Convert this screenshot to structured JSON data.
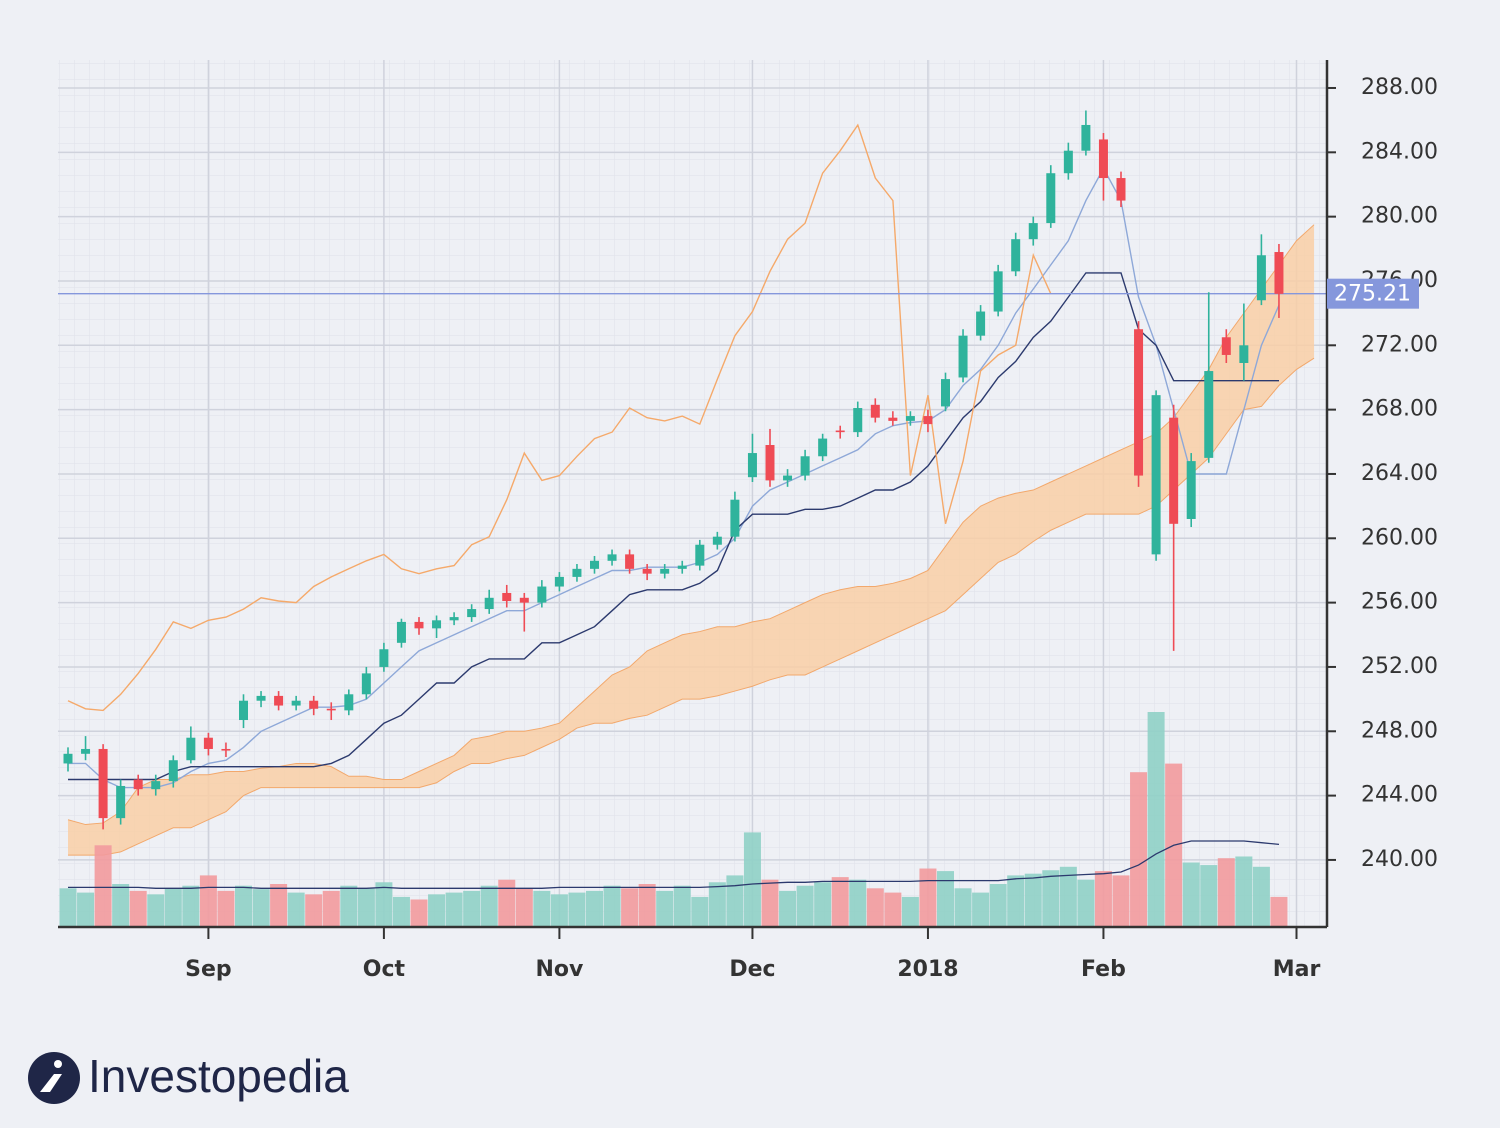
{
  "chart_data": {
    "type": "candlestick",
    "categories": [
      null,
      null,
      null,
      null,
      null,
      null,
      null,
      null,
      "Sep",
      null,
      null,
      null,
      null,
      null,
      null,
      null,
      null,
      null,
      "Oct",
      null,
      null,
      null,
      null,
      null,
      null,
      null,
      null,
      null,
      "Nov",
      null,
      null,
      null,
      null,
      null,
      null,
      null,
      null,
      null,
      null,
      "Dec",
      null,
      null,
      null,
      null,
      null,
      null,
      null,
      null,
      null,
      "2018",
      null,
      null,
      null,
      null,
      null,
      null,
      null,
      null,
      null,
      "Feb",
      null,
      null,
      null,
      null,
      null,
      null,
      null,
      null,
      null,
      null,
      "Mar",
      null
    ],
    "open": [
      246.0,
      246.6,
      246.9,
      242.6,
      245.0,
      244.4,
      244.9,
      246.2,
      247.6,
      246.9,
      248.7,
      249.9,
      250.2,
      249.6,
      249.9,
      249.4,
      249.3,
      250.3,
      252.0,
      253.5,
      254.8,
      254.4,
      254.9,
      255.1,
      255.6,
      256.6,
      256.3,
      256.0,
      257.0,
      257.6,
      258.1,
      258.6,
      259.0,
      258.1,
      257.8,
      258.1,
      258.3,
      259.6,
      260.1,
      263.8,
      265.8,
      263.6,
      263.9,
      265.1,
      266.7,
      266.6,
      268.3,
      267.5,
      267.3,
      267.6,
      268.2,
      270.0,
      272.6,
      274.1,
      276.6,
      278.6,
      279.6,
      282.7,
      284.1,
      284.8,
      282.4,
      273.0,
      259.0,
      267.5,
      261.2,
      265.0,
      272.5,
      270.9,
      274.8,
      277.8,
      null,
      null
    ],
    "high": [
      247.0,
      247.7,
      247.2,
      245.0,
      245.3,
      245.3,
      246.5,
      248.3,
      247.9,
      247.3,
      250.3,
      250.5,
      250.5,
      250.2,
      250.2,
      249.8,
      250.6,
      252.0,
      253.5,
      255.0,
      255.1,
      255.2,
      255.4,
      255.9,
      256.8,
      257.1,
      256.6,
      257.4,
      257.9,
      258.4,
      258.9,
      259.3,
      259.3,
      258.4,
      258.4,
      258.6,
      259.9,
      260.4,
      262.9,
      266.5,
      266.8,
      264.3,
      265.5,
      266.5,
      267.0,
      268.5,
      268.7,
      267.9,
      267.9,
      268.0,
      270.3,
      273.0,
      274.5,
      277.0,
      279.0,
      280.0,
      283.2,
      284.6,
      286.6,
      285.2,
      282.8,
      273.5,
      269.2,
      268.3,
      265.3,
      275.3,
      273.0,
      274.6,
      278.9,
      278.3,
      null,
      null
    ],
    "low": [
      245.5,
      246.2,
      241.9,
      242.2,
      244.0,
      244.0,
      244.5,
      246.0,
      246.5,
      246.4,
      248.2,
      249.5,
      249.3,
      249.3,
      249.0,
      248.7,
      249.0,
      250.0,
      251.7,
      253.2,
      254.0,
      253.8,
      254.6,
      254.8,
      255.3,
      255.7,
      254.2,
      255.7,
      256.7,
      257.3,
      257.8,
      258.3,
      257.8,
      257.4,
      257.5,
      257.8,
      258.0,
      259.3,
      259.8,
      263.5,
      263.2,
      263.2,
      263.6,
      264.8,
      266.2,
      266.3,
      267.2,
      267.0,
      267.0,
      266.6,
      267.9,
      269.7,
      272.3,
      273.8,
      276.3,
      278.2,
      279.3,
      282.3,
      283.8,
      281.0,
      280.6,
      263.2,
      258.6,
      253.0,
      260.7,
      264.7,
      270.9,
      269.8,
      274.5,
      273.7,
      null,
      null
    ],
    "close": [
      246.6,
      246.9,
      242.6,
      244.6,
      244.4,
      244.9,
      246.2,
      247.6,
      246.9,
      246.8,
      249.9,
      250.2,
      249.6,
      249.9,
      249.4,
      249.3,
      250.3,
      251.6,
      253.1,
      254.8,
      254.4,
      254.9,
      255.1,
      255.6,
      256.3,
      256.1,
      256.0,
      257.0,
      257.6,
      258.1,
      258.6,
      259.0,
      258.1,
      257.8,
      258.1,
      258.3,
      259.6,
      260.1,
      262.4,
      265.3,
      263.6,
      263.9,
      265.1,
      266.2,
      266.6,
      268.1,
      267.5,
      267.3,
      267.6,
      267.1,
      269.9,
      272.6,
      274.1,
      276.6,
      278.6,
      279.6,
      282.7,
      284.1,
      285.7,
      282.4,
      281.0,
      263.9,
      268.9,
      260.9,
      264.8,
      270.4,
      271.4,
      272.0,
      277.6,
      275.2,
      null,
      null
    ],
    "up_color": "#2fb39c",
    "down_color": "#ef4b55",
    "volume": {
      "values": [
        45,
        40,
        95,
        50,
        42,
        38,
        45,
        48,
        60,
        42,
        48,
        44,
        50,
        40,
        38,
        42,
        48,
        45,
        52,
        35,
        32,
        38,
        40,
        42,
        48,
        55,
        45,
        42,
        38,
        40,
        42,
        48,
        45,
        50,
        42,
        48,
        35,
        52,
        60,
        110,
        55,
        42,
        48,
        52,
        58,
        55,
        45,
        40,
        35,
        68,
        65,
        45,
        40,
        50,
        60,
        62,
        66,
        70,
        55,
        65,
        60,
        180,
        250,
        190,
        75,
        72,
        80,
        82,
        70,
        35,
        null,
        null
      ],
      "up_color": "#8fd0c6",
      "down_color": "#f29a9d"
    },
    "volume_average": {
      "color": "#2c3a6e",
      "values": [
        46,
        46,
        46,
        46,
        46,
        45,
        45,
        45,
        46,
        46,
        46,
        45,
        45,
        45,
        45,
        45,
        45,
        45,
        46,
        45,
        45,
        45,
        45,
        45,
        45,
        45,
        45,
        45,
        46,
        46,
        46,
        46,
        46,
        46,
        46,
        46,
        46,
        47,
        48,
        50,
        51,
        52,
        52,
        53,
        53,
        53,
        53,
        53,
        53,
        54,
        54,
        54,
        54,
        54,
        56,
        57,
        59,
        60,
        61,
        62,
        64,
        72,
        85,
        95,
        100,
        100,
        100,
        100,
        98,
        96,
        null,
        null
      ]
    },
    "lines": [
      {
        "color": "#8ea8d8",
        "values": [
          246,
          246,
          245,
          244.5,
          244.5,
          244.5,
          244.8,
          245.5,
          246,
          246.2,
          247,
          248,
          248.5,
          249,
          249.5,
          249.5,
          249.6,
          250,
          251,
          252,
          253,
          253.5,
          254,
          254.5,
          255,
          255.5,
          255.5,
          256,
          256.5,
          257,
          257.5,
          258,
          258,
          258.2,
          258.2,
          258.2,
          258.5,
          259,
          260,
          262,
          263,
          263.5,
          264,
          264.5,
          265,
          265.5,
          266.5,
          267,
          267.2,
          267.3,
          268,
          269.5,
          270.5,
          272,
          274,
          275.5,
          277,
          278.5,
          281,
          283,
          281,
          275,
          272,
          268,
          264,
          264,
          264,
          268,
          272,
          274.5,
          null,
          null
        ]
      },
      {
        "color": "#2c3a6e",
        "values": [
          245,
          245,
          245,
          245,
          245,
          245,
          245.5,
          245.8,
          245.8,
          245.8,
          245.8,
          245.8,
          245.8,
          245.8,
          245.8,
          246,
          246.5,
          247.5,
          248.5,
          249,
          250,
          251,
          251,
          252,
          252.5,
          252.5,
          252.5,
          253.5,
          253.5,
          254,
          254.5,
          255.5,
          256.5,
          256.8,
          256.8,
          256.8,
          257.2,
          258,
          260.5,
          261.5,
          261.5,
          261.5,
          261.8,
          261.8,
          262,
          262.5,
          263,
          263,
          263.5,
          264.5,
          266,
          267.5,
          268.5,
          270,
          271,
          272.5,
          273.5,
          275,
          276.5,
          276.5,
          276.5,
          273,
          272,
          269.8,
          269.8,
          269.8,
          269.8,
          269.8,
          269.8,
          269.8,
          null,
          null
        ]
      },
      {
        "color": "#f5a96a",
        "values": [
          249.9,
          249.4,
          249.3,
          250.3,
          251.6,
          253.1,
          254.8,
          254.4,
          254.9,
          255.1,
          255.6,
          256.3,
          256.1,
          256.0,
          257.0,
          257.6,
          258.1,
          258.6,
          259.0,
          258.1,
          257.8,
          258.1,
          258.3,
          259.6,
          260.1,
          262.4,
          265.3,
          263.6,
          263.9,
          265.1,
          266.2,
          266.6,
          268.1,
          267.5,
          267.3,
          267.6,
          267.1,
          269.9,
          272.6,
          274.1,
          276.6,
          278.6,
          279.6,
          282.7,
          284.1,
          285.7,
          282.4,
          281.0,
          263.9,
          268.9,
          260.9,
          264.8,
          270.4,
          271.4,
          272.0,
          277.6,
          275.2,
          null,
          null,
          null,
          null,
          null,
          null,
          null,
          null,
          null,
          null,
          null,
          null,
          null,
          null,
          null
        ]
      }
    ],
    "cloud": {
      "fill": "#f9cfa6",
      "edge": "#f2a86c",
      "upper": [
        242.5,
        242.2,
        242.3,
        243,
        244.5,
        245,
        245,
        245.3,
        245.3,
        245.5,
        245.5,
        245.7,
        245.8,
        246,
        246,
        245.8,
        245.2,
        245.2,
        245,
        245,
        245.5,
        246,
        246.5,
        247.5,
        247.7,
        248,
        248,
        248.2,
        248.5,
        249.5,
        250.5,
        251.5,
        252,
        253,
        253.5,
        254,
        254.2,
        254.5,
        254.5,
        254.8,
        255,
        255.5,
        256,
        256.5,
        256.8,
        257,
        257,
        257.2,
        257.5,
        258,
        259.5,
        261,
        262,
        262.5,
        262.8,
        263,
        263.5,
        264,
        264.5,
        265,
        265.5,
        266,
        266.5,
        267.5,
        269,
        270.5,
        272.5,
        274,
        275.5,
        277,
        278.5,
        279.5
      ],
      "lower": [
        240.3,
        240.3,
        240.3,
        240.5,
        241,
        241.5,
        242,
        242,
        242.5,
        243,
        244,
        244.5,
        244.5,
        244.5,
        244.5,
        244.5,
        244.5,
        244.5,
        244.5,
        244.5,
        244.5,
        244.8,
        245.5,
        246,
        246,
        246.3,
        246.5,
        247,
        247.5,
        248.2,
        248.5,
        248.5,
        248.8,
        249,
        249.5,
        250,
        250,
        250.2,
        250.5,
        250.8,
        251.2,
        251.5,
        251.5,
        252,
        252.5,
        253,
        253.5,
        254,
        254.5,
        255,
        255.5,
        256.5,
        257.5,
        258.5,
        259,
        259.8,
        260.5,
        261,
        261.5,
        261.5,
        261.5,
        261.5,
        262,
        263,
        264,
        265,
        266.5,
        268,
        268.2,
        269.5,
        270.5,
        271.2
      ]
    },
    "last_price": 275.21,
    "last_price_color": "#8597dc",
    "ylim": [
      235.83,
      289.74
    ],
    "yticks": [
      {
        "value": 240,
        "label": "240.00"
      },
      {
        "value": 244,
        "label": "244.00"
      },
      {
        "value": 248,
        "label": "248.00"
      },
      {
        "value": 252,
        "label": "252.00"
      },
      {
        "value": 256,
        "label": "256.00"
      },
      {
        "value": 260,
        "label": "260.00"
      },
      {
        "value": 264,
        "label": "264.00"
      },
      {
        "value": 268,
        "label": "268.00"
      },
      {
        "value": 272,
        "label": "272.00"
      },
      {
        "value": 276,
        "label": "276.00"
      },
      {
        "value": 280,
        "label": "280.00"
      },
      {
        "value": 284,
        "label": "284.00"
      },
      {
        "value": 288,
        "label": "288.00"
      }
    ],
    "grid": true
  },
  "logo": {
    "text": "Investopedia"
  }
}
